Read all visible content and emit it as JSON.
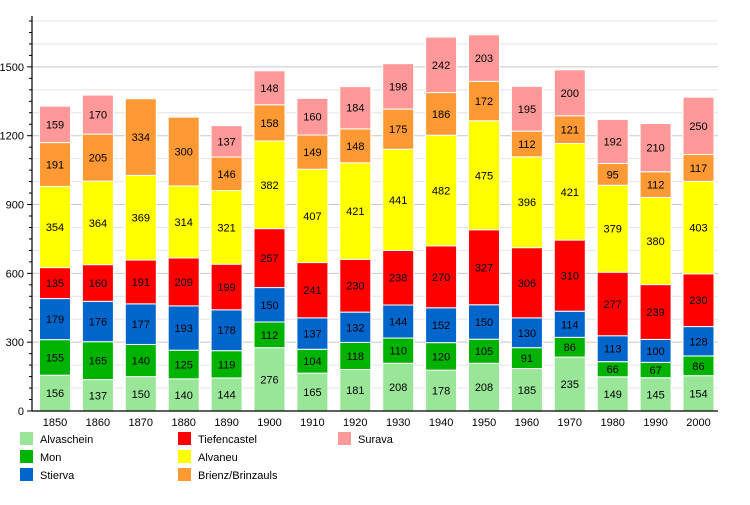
{
  "chart_data": {
    "type": "bar",
    "stacked": true,
    "categories": [
      "1850",
      "1860",
      "1870",
      "1880",
      "1890",
      "1900",
      "1910",
      "1920",
      "1930",
      "1940",
      "1950",
      "1960",
      "1970",
      "1980",
      "1990",
      "2000"
    ],
    "ylim": [
      0,
      1700
    ],
    "yticks": [
      0,
      300,
      600,
      900,
      1200,
      1500
    ],
    "grid": true,
    "legend_placement": "bottom",
    "series": [
      {
        "name": "Alvaschein",
        "color": "#99e699",
        "values": [
          156,
          137,
          150,
          140,
          144,
          276,
          165,
          181,
          208,
          178,
          208,
          185,
          235,
          149,
          145,
          154
        ]
      },
      {
        "name": "Mon",
        "color": "#00b300",
        "values": [
          155,
          165,
          140,
          125,
          119,
          112,
          104,
          118,
          110,
          120,
          105,
          91,
          86,
          66,
          67,
          86
        ]
      },
      {
        "name": "Stierva",
        "color": "#0066cc",
        "values": [
          179,
          176,
          177,
          193,
          178,
          150,
          137,
          132,
          144,
          152,
          150,
          130,
          114,
          113,
          100,
          128
        ]
      },
      {
        "name": "Tiefencastel",
        "color": "#ff0000",
        "values": [
          135,
          160,
          191,
          209,
          199,
          257,
          241,
          230,
          238,
          270,
          327,
          306,
          310,
          277,
          239,
          230
        ]
      },
      {
        "name": "Alvaneu",
        "color": "#ffff00",
        "values": [
          354,
          364,
          369,
          314,
          321,
          382,
          407,
          421,
          441,
          482,
          475,
          396,
          421,
          379,
          380,
          403
        ]
      },
      {
        "name": "Brienz/Brinzauls",
        "color": "#ff9933",
        "values": [
          191,
          205,
          334,
          300,
          146,
          158,
          149,
          148,
          175,
          186,
          172,
          112,
          121,
          95,
          112,
          117
        ]
      },
      {
        "name": "Surava",
        "color": "#ff9999",
        "values": [
          159,
          170,
          null,
          null,
          137,
          148,
          160,
          184,
          198,
          242,
          203,
          195,
          200,
          192,
          210,
          250
        ]
      }
    ]
  }
}
